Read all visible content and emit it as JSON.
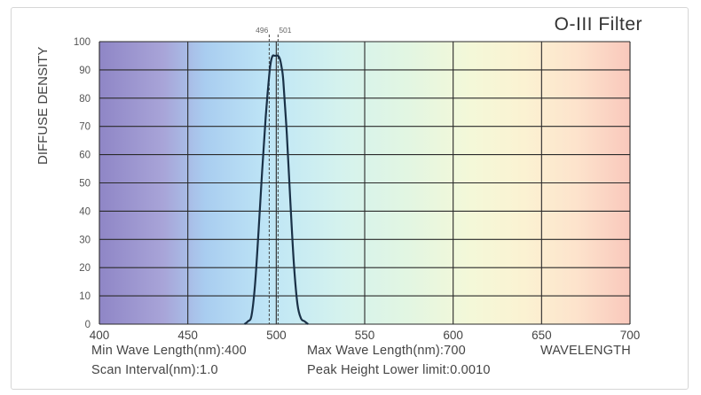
{
  "chart_data": {
    "type": "line",
    "title": "O-III Filter",
    "xlabel": "WAVELENGTH",
    "ylabel": "DIFFUSE DENSITY",
    "xlim": [
      400,
      700
    ],
    "ylim": [
      0,
      100
    ],
    "x_ticks": [
      400,
      450,
      500,
      550,
      600,
      650,
      700
    ],
    "y_ticks": [
      0,
      10,
      20,
      30,
      40,
      50,
      60,
      70,
      80,
      90,
      100
    ],
    "grid": true,
    "markers": [
      {
        "x": 496,
        "label": "496"
      },
      {
        "x": 501,
        "label": "501"
      }
    ],
    "series": [
      {
        "x": [
          482,
          484,
          486,
          488,
          490,
          492,
          494,
          496,
          497,
          498,
          499,
          500,
          501,
          502,
          503,
          504,
          506,
          508,
          510,
          512,
          514,
          516,
          518
        ],
        "y": [
          0,
          1,
          3,
          14,
          33,
          54,
          73,
          88,
          93,
          95,
          95,
          95,
          95,
          94,
          91,
          86,
          67,
          43,
          21,
          7,
          2,
          1,
          0
        ],
        "color": "#1a3147"
      }
    ]
  },
  "footer": {
    "min_wave": "Min Wave Length(nm):400",
    "max_wave": "Max Wave Length(nm):700",
    "wavelength": "WAVELENGTH",
    "scan_interval": "Scan Interval(nm):1.0",
    "peak_height": "Peak Height Lower limit:0.0010"
  }
}
